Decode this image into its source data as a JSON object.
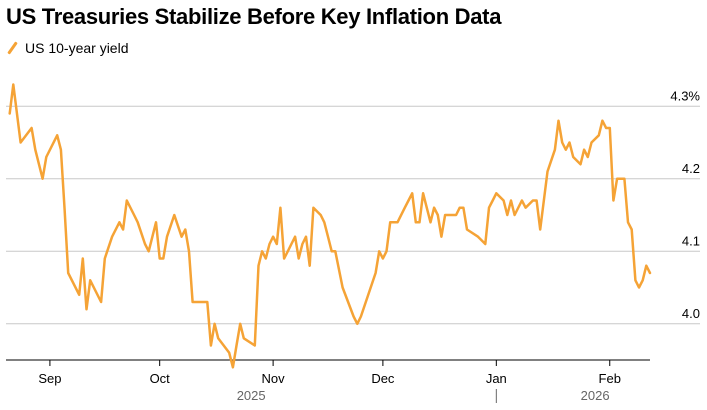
{
  "chart_data": {
    "type": "line",
    "title": "US Treasuries Stabilize Before Key Inflation Data",
    "xlabel": "",
    "ylabel": "",
    "ylim": [
      3.95,
      4.35
    ],
    "yticks": [
      {
        "value": 4.3,
        "label": "4.3%"
      },
      {
        "value": 4.2,
        "label": "4.2"
      },
      {
        "value": 4.1,
        "label": "4.1"
      },
      {
        "value": 4.0,
        "label": "4.0"
      }
    ],
    "x_range": [
      "2025-08-20",
      "2026-02-12"
    ],
    "xticks": [
      {
        "date": "2025-09-01",
        "label": "Sep"
      },
      {
        "date": "2025-10-01",
        "label": "Oct"
      },
      {
        "date": "2025-11-01",
        "label": "Nov"
      },
      {
        "date": "2025-12-01",
        "label": "Dec"
      },
      {
        "date": "2026-01-01",
        "label": "Jan"
      },
      {
        "date": "2026-02-01",
        "label": "Feb"
      }
    ],
    "year_labels": [
      {
        "label": "2025",
        "center": "2025-10-26"
      },
      {
        "label": "2026",
        "center": "2026-01-28"
      }
    ],
    "year_divider": "2026-01-01",
    "series": [
      {
        "name": "US 10-year yield",
        "color": "#f5a336",
        "points": [
          [
            "2025-08-21",
            4.29
          ],
          [
            "2025-08-22",
            4.33
          ],
          [
            "2025-08-24",
            4.25
          ],
          [
            "2025-08-27",
            4.27
          ],
          [
            "2025-08-28",
            4.24
          ],
          [
            "2025-08-30",
            4.2
          ],
          [
            "2025-08-31",
            4.23
          ],
          [
            "2025-09-03",
            4.26
          ],
          [
            "2025-09-04",
            4.24
          ],
          [
            "2025-09-05",
            4.16
          ],
          [
            "2025-09-06",
            4.07
          ],
          [
            "2025-09-09",
            4.04
          ],
          [
            "2025-09-10",
            4.09
          ],
          [
            "2025-09-11",
            4.02
          ],
          [
            "2025-09-12",
            4.06
          ],
          [
            "2025-09-15",
            4.03
          ],
          [
            "2025-09-16",
            4.09
          ],
          [
            "2025-09-18",
            4.12
          ],
          [
            "2025-09-20",
            4.14
          ],
          [
            "2025-09-21",
            4.13
          ],
          [
            "2025-09-22",
            4.17
          ],
          [
            "2025-09-24",
            4.15
          ],
          [
            "2025-09-25",
            4.14
          ],
          [
            "2025-09-27",
            4.11
          ],
          [
            "2025-09-28",
            4.1
          ],
          [
            "2025-09-30",
            4.14
          ],
          [
            "2025-10-01",
            4.09
          ],
          [
            "2025-10-02",
            4.09
          ],
          [
            "2025-10-03",
            4.12
          ],
          [
            "2025-10-05",
            4.15
          ],
          [
            "2025-10-07",
            4.12
          ],
          [
            "2025-10-08",
            4.13
          ],
          [
            "2025-10-09",
            4.1
          ],
          [
            "2025-10-10",
            4.03
          ],
          [
            "2025-10-14",
            4.03
          ],
          [
            "2025-10-15",
            3.97
          ],
          [
            "2025-10-16",
            4.0
          ],
          [
            "2025-10-17",
            3.98
          ],
          [
            "2025-10-20",
            3.96
          ],
          [
            "2025-10-21",
            3.94
          ],
          [
            "2025-10-22",
            3.97
          ],
          [
            "2025-10-23",
            4.0
          ],
          [
            "2025-10-24",
            3.98
          ],
          [
            "2025-10-27",
            3.97
          ],
          [
            "2025-10-28",
            4.08
          ],
          [
            "2025-10-29",
            4.1
          ],
          [
            "2025-10-30",
            4.09
          ],
          [
            "2025-10-31",
            4.11
          ],
          [
            "2025-11-01",
            4.12
          ],
          [
            "2025-11-02",
            4.11
          ],
          [
            "2025-11-03",
            4.16
          ],
          [
            "2025-11-04",
            4.09
          ],
          [
            "2025-11-05",
            4.1
          ],
          [
            "2025-11-06",
            4.11
          ],
          [
            "2025-11-07",
            4.12
          ],
          [
            "2025-11-08",
            4.09
          ],
          [
            "2025-11-09",
            4.11
          ],
          [
            "2025-11-10",
            4.12
          ],
          [
            "2025-11-11",
            4.08
          ],
          [
            "2025-11-12",
            4.16
          ],
          [
            "2025-11-14",
            4.15
          ],
          [
            "2025-11-15",
            4.14
          ],
          [
            "2025-11-16",
            4.12
          ],
          [
            "2025-11-17",
            4.1
          ],
          [
            "2025-11-18",
            4.1
          ],
          [
            "2025-11-20",
            4.05
          ],
          [
            "2025-11-23",
            4.01
          ],
          [
            "2025-11-24",
            4.0
          ],
          [
            "2025-11-25",
            4.01
          ],
          [
            "2025-11-29",
            4.07
          ],
          [
            "2025-11-30",
            4.1
          ],
          [
            "2025-12-01",
            4.09
          ],
          [
            "2025-12-02",
            4.1
          ],
          [
            "2025-12-03",
            4.14
          ],
          [
            "2025-12-05",
            4.14
          ],
          [
            "2025-12-07",
            4.16
          ],
          [
            "2025-12-08",
            4.17
          ],
          [
            "2025-12-09",
            4.18
          ],
          [
            "2025-12-10",
            4.14
          ],
          [
            "2025-12-11",
            4.14
          ],
          [
            "2025-12-12",
            4.18
          ],
          [
            "2025-12-14",
            4.14
          ],
          [
            "2025-12-15",
            4.16
          ],
          [
            "2025-12-16",
            4.15
          ],
          [
            "2025-12-17",
            4.12
          ],
          [
            "2025-12-18",
            4.15
          ],
          [
            "2025-12-19",
            4.15
          ],
          [
            "2025-12-21",
            4.15
          ],
          [
            "2025-12-22",
            4.16
          ],
          [
            "2025-12-23",
            4.16
          ],
          [
            "2025-12-24",
            4.13
          ],
          [
            "2025-12-27",
            4.12
          ],
          [
            "2025-12-29",
            4.11
          ],
          [
            "2025-12-30",
            4.16
          ],
          [
            "2025-12-31",
            4.17
          ],
          [
            "2026-01-01",
            4.18
          ],
          [
            "2026-01-03",
            4.17
          ],
          [
            "2026-01-04",
            4.15
          ],
          [
            "2026-01-05",
            4.17
          ],
          [
            "2026-01-06",
            4.15
          ],
          [
            "2026-01-08",
            4.17
          ],
          [
            "2026-01-09",
            4.16
          ],
          [
            "2026-01-11",
            4.17
          ],
          [
            "2026-01-12",
            4.17
          ],
          [
            "2026-01-13",
            4.13
          ],
          [
            "2026-01-15",
            4.21
          ],
          [
            "2026-01-17",
            4.24
          ],
          [
            "2026-01-18",
            4.28
          ],
          [
            "2026-01-19",
            4.25
          ],
          [
            "2026-01-20",
            4.24
          ],
          [
            "2026-01-21",
            4.25
          ],
          [
            "2026-01-22",
            4.23
          ],
          [
            "2026-01-24",
            4.22
          ],
          [
            "2026-01-25",
            4.24
          ],
          [
            "2026-01-26",
            4.23
          ],
          [
            "2026-01-27",
            4.25
          ],
          [
            "2026-01-29",
            4.26
          ],
          [
            "2026-01-30",
            4.28
          ],
          [
            "2026-01-31",
            4.27
          ],
          [
            "2026-02-01",
            4.27
          ],
          [
            "2026-02-02",
            4.17
          ],
          [
            "2026-02-03",
            4.2
          ],
          [
            "2026-02-04",
            4.2
          ],
          [
            "2026-02-05",
            4.2
          ],
          [
            "2026-02-06",
            4.14
          ],
          [
            "2026-02-07",
            4.13
          ],
          [
            "2026-02-08",
            4.06
          ],
          [
            "2026-02-09",
            4.05
          ],
          [
            "2026-02-10",
            4.06
          ],
          [
            "2026-02-11",
            4.08
          ],
          [
            "2026-02-12",
            4.07
          ]
        ]
      }
    ]
  },
  "legend": {
    "label": "US 10-year yield"
  },
  "colors": {
    "line": "#f5a336",
    "grid": "#c8c8c8",
    "axis": "#000000",
    "year_label": "#666666"
  }
}
